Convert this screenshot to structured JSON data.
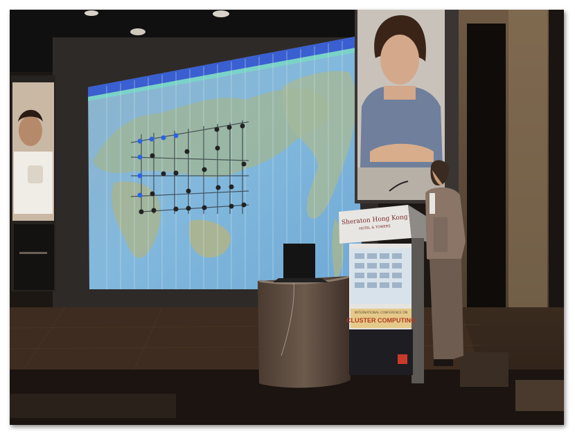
{
  "photo": {
    "podium_sign": "Sheraton Hong Kong",
    "podium_sign_sub": "HOTEL & TOWERS",
    "conference_banner": "CLUSTER COMPUTING",
    "conference_banner_top": "INTERNATIONAL CONFERENCE ON"
  }
}
